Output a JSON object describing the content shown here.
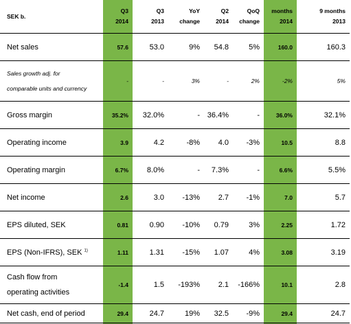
{
  "table": {
    "header": {
      "label": "SEK b.",
      "columns": [
        {
          "line1": "Q3",
          "line2": "2014"
        },
        {
          "line1": "Q3",
          "line2": "2013"
        },
        {
          "line1": "YoY",
          "line2": "change"
        },
        {
          "line1": "Q2",
          "line2": "2014"
        },
        {
          "line1": "QoQ",
          "line2": "change"
        },
        {
          "line1": "months",
          "line2": "2014"
        },
        {
          "line1": "9 months",
          "line2": "2013"
        }
      ]
    },
    "rows": [
      {
        "label": "Net sales",
        "values": [
          "57.6",
          "53.0",
          "9%",
          "54.8",
          "5%",
          "160.0",
          "160.3"
        ]
      },
      {
        "label_line1": "Sales growth adj. for",
        "label_line2": "comparable units and currency",
        "values": [
          "-",
          "-",
          "3%",
          "-",
          "2%",
          "-2%",
          "5%"
        ]
      },
      {
        "label": "Gross margin",
        "values": [
          "35.2%",
          "32.0%",
          "-",
          "36.4%",
          "-",
          "36.0%",
          "32.1%"
        ]
      },
      {
        "label": "Operating income",
        "values": [
          "3.9",
          "4.2",
          "-8%",
          "4.0",
          "-3%",
          "10.5",
          "8.8"
        ]
      },
      {
        "label": "Operating margin",
        "values": [
          "6.7%",
          "8.0%",
          "-",
          "7.3%",
          "-",
          "6.6%",
          "5.5%"
        ]
      },
      {
        "label": "Net income",
        "values": [
          "2.6",
          "3.0",
          "-13%",
          "2.7",
          "-1%",
          "7.0",
          "5.7"
        ]
      },
      {
        "label": "EPS diluted, SEK",
        "values": [
          "0.81",
          "0.90",
          "-10%",
          "0.79",
          "3%",
          "2.25",
          "1.72"
        ]
      },
      {
        "label": "EPS (Non-IFRS), SEK",
        "footnote": "1)",
        "values": [
          "1.11",
          "1.31",
          "-15%",
          "1.07",
          "4%",
          "3.08",
          "3.19"
        ]
      },
      {
        "label_line1": "Cash flow from",
        "label_line2": "operating activities",
        "values": [
          "-1.4",
          "1.5",
          "-193%",
          "2.1",
          "-166%",
          "10.1",
          "2.8"
        ]
      },
      {
        "label": "Net cash, end of period",
        "values": [
          "29.4",
          "24.7",
          "19%",
          "32.5",
          "-9%",
          "29.4",
          "24.7"
        ]
      }
    ],
    "highlight_color": "#7ab648"
  }
}
